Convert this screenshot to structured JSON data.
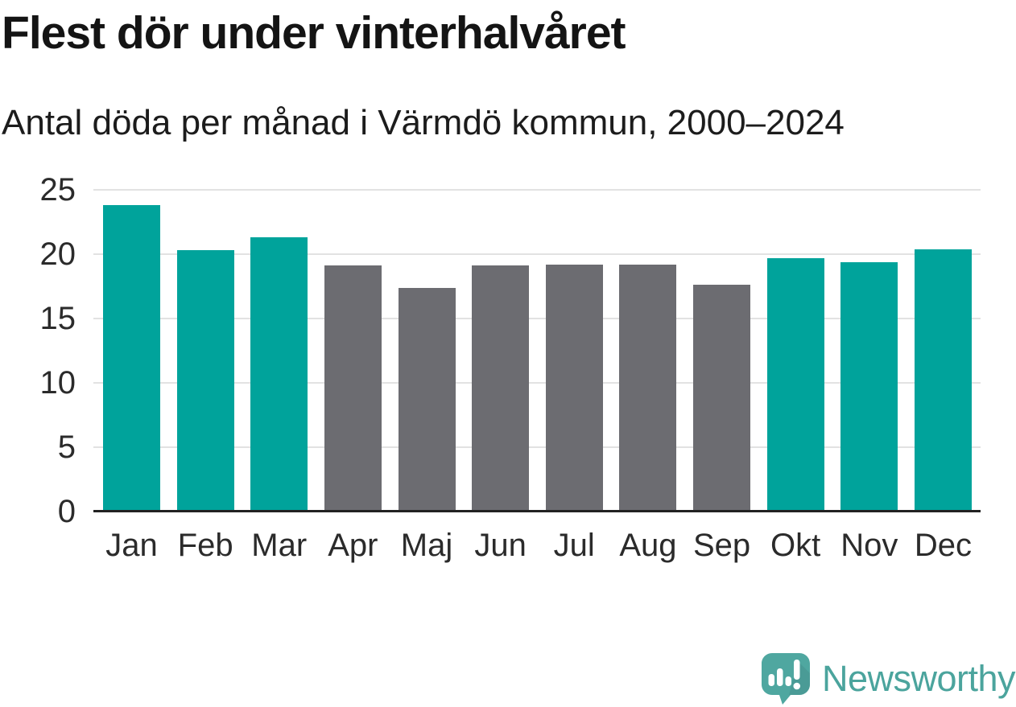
{
  "header": {
    "title": "Flest dör under vinterhalvåret",
    "subtitle": "Antal döda per månad i Värmdö kommun, 2000–2024"
  },
  "chart_data": {
    "type": "bar",
    "title": "Flest dör under vinterhalvåret",
    "subtitle": "Antal döda per månad i Värmdö kommun, 2000–2024",
    "categories": [
      "Jan",
      "Feb",
      "Mar",
      "Apr",
      "Maj",
      "Jun",
      "Jul",
      "Aug",
      "Sep",
      "Okt",
      "Nov",
      "Dec"
    ],
    "values": [
      23.8,
      20.3,
      21.3,
      19.1,
      17.4,
      19.1,
      19.2,
      19.2,
      17.6,
      19.7,
      19.4,
      20.4
    ],
    "bar_colors": [
      "#00a39b",
      "#00a39b",
      "#00a39b",
      "#6c6c71",
      "#6c6c71",
      "#6c6c71",
      "#6c6c71",
      "#6c6c71",
      "#6c6c71",
      "#00a39b",
      "#00a39b",
      "#00a39b"
    ],
    "highlight_color": "#00a39b",
    "muted_color": "#6c6c71",
    "highlighted_categories": [
      "Jan",
      "Feb",
      "Mar",
      "Okt",
      "Nov",
      "Dec"
    ],
    "xlabel": "",
    "ylabel": "",
    "ylim": [
      0,
      25
    ],
    "yticks": [
      0,
      5,
      10,
      15,
      20,
      25
    ],
    "grid": "horizontal-on",
    "legend": "none"
  },
  "footer": {
    "brand": "Newsworthy",
    "logo_icon": "speech-bubble-with-bar-chart-and-exclamation",
    "brand_color": "#4ba49d"
  }
}
